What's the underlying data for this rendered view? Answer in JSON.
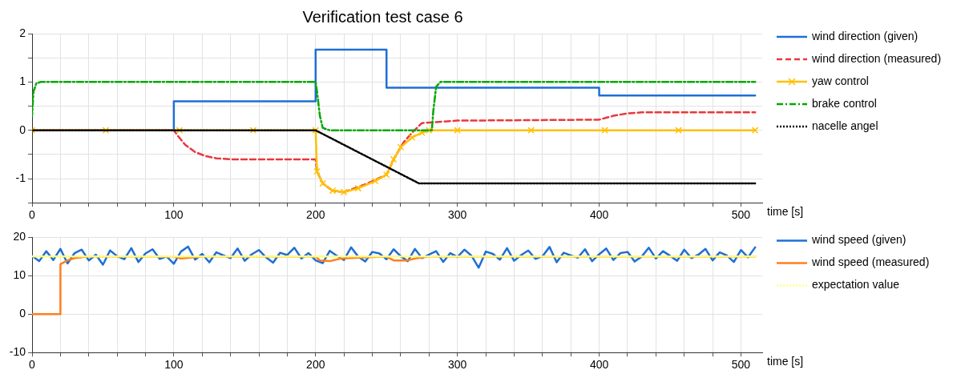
{
  "chart_data": [
    {
      "type": "line",
      "title": "Verification test case 6",
      "xlabel": "time [s]",
      "xlim": [
        0,
        515
      ],
      "ylim": [
        -1.5,
        2
      ],
      "xticks": [
        0,
        {
          "value": 20,
          "label": null
        },
        {
          "value": 40,
          "label": null
        },
        {
          "value": 60,
          "label": null
        },
        {
          "value": 80,
          "label": null
        },
        100,
        {
          "value": 120,
          "label": null
        },
        {
          "value": 140,
          "label": null
        },
        {
          "value": 160,
          "label": null
        },
        {
          "value": 180,
          "label": null
        },
        200,
        {
          "value": 220,
          "label": null
        },
        {
          "value": 240,
          "label": null
        },
        {
          "value": 260,
          "label": null
        },
        {
          "value": 280,
          "label": null
        },
        300,
        {
          "value": 320,
          "label": null
        },
        {
          "value": 340,
          "label": null
        },
        {
          "value": 360,
          "label": null
        },
        {
          "value": 380,
          "label": null
        },
        400,
        {
          "value": 420,
          "label": null
        },
        {
          "value": 440,
          "label": null
        },
        {
          "value": 460,
          "label": null
        },
        {
          "value": 480,
          "label": null
        },
        500
      ],
      "yticks": [
        {
          "value": -1.5,
          "label": null
        },
        -1,
        {
          "value": -0.5,
          "label": null
        },
        0,
        {
          "value": 0.5,
          "label": null
        },
        1,
        {
          "value": 1.5,
          "label": null
        },
        2
      ],
      "grid": true,
      "legend": "right",
      "marker": "none",
      "series": [
        {
          "name": "wind direction (given)",
          "color": "#1f6ed4",
          "line_style": "solid",
          "x": [
            0,
            100,
            100,
            200,
            200,
            250,
            250,
            400,
            400,
            510
          ],
          "values": [
            0,
            0,
            0.6,
            0.6,
            1.67,
            1.67,
            0.88,
            0.88,
            0.72,
            0.72
          ]
        },
        {
          "name": "wind direction (measured)",
          "color": "#e8383d",
          "line_style": "dashed",
          "x": [
            0,
            100,
            103,
            108,
            115,
            122,
            130,
            140,
            160,
            200,
            201,
            205,
            212,
            220,
            235,
            250,
            256,
            262,
            268,
            275,
            300,
            400,
            405,
            410,
            420,
            430,
            510
          ],
          "values": [
            0,
            0,
            -0.12,
            -0.3,
            -0.45,
            -0.53,
            -0.58,
            -0.6,
            -0.6,
            -0.6,
            -0.85,
            -1.1,
            -1.25,
            -1.28,
            -1.12,
            -0.92,
            -0.55,
            -0.25,
            -0.05,
            0.15,
            0.2,
            0.22,
            0.26,
            0.3,
            0.35,
            0.37,
            0.37
          ]
        },
        {
          "name": "yaw control",
          "color": "#ffc000",
          "line_style": "solid",
          "marker": "cross",
          "x": [
            0,
            52,
            104,
            156,
            200,
            201,
            205,
            212,
            220,
            230,
            242,
            250,
            255,
            260,
            268,
            275,
            280,
            300,
            352,
            404,
            456,
            510
          ],
          "values": [
            0,
            0,
            0,
            0,
            0,
            -0.85,
            -1.1,
            -1.25,
            -1.28,
            -1.2,
            -1.05,
            -0.92,
            -0.6,
            -0.35,
            -0.15,
            -0.05,
            0,
            0,
            0,
            0,
            0,
            0
          ]
        },
        {
          "name": "brake control",
          "color": "#00a800",
          "line_style": "dashdot",
          "x": [
            0,
            1,
            3,
            6,
            200,
            201,
            203,
            205,
            210,
            282,
            283,
            285,
            288,
            510
          ],
          "values": [
            0.3,
            0.8,
            0.97,
            1,
            1,
            0.8,
            0.3,
            0.05,
            0,
            0,
            0.4,
            0.9,
            1,
            1
          ]
        },
        {
          "name": "nacelle angel",
          "color": "#000000",
          "line_style": "dotted",
          "x": [
            0,
            200,
            273,
            510
          ],
          "values": [
            0,
            0,
            -1.1,
            -1.1
          ]
        }
      ]
    },
    {
      "type": "line",
      "xlabel": "time [s]",
      "xlim": [
        0,
        515
      ],
      "ylim": [
        -10,
        20
      ],
      "xticks": [
        0,
        {
          "value": 20,
          "label": null
        },
        {
          "value": 40,
          "label": null
        },
        {
          "value": 60,
          "label": null
        },
        {
          "value": 80,
          "label": null
        },
        100,
        {
          "value": 120,
          "label": null
        },
        {
          "value": 140,
          "label": null
        },
        {
          "value": 160,
          "label": null
        },
        {
          "value": 180,
          "label": null
        },
        200,
        {
          "value": 220,
          "label": null
        },
        {
          "value": 240,
          "label": null
        },
        {
          "value": 260,
          "label": null
        },
        {
          "value": 280,
          "label": null
        },
        300,
        {
          "value": 320,
          "label": null
        },
        {
          "value": 340,
          "label": null
        },
        {
          "value": 360,
          "label": null
        },
        {
          "value": 380,
          "label": null
        },
        400,
        {
          "value": 420,
          "label": null
        },
        {
          "value": 440,
          "label": null
        },
        {
          "value": 460,
          "label": null
        },
        {
          "value": 480,
          "label": null
        },
        500
      ],
      "yticks": [
        -10,
        0,
        10,
        20
      ],
      "grid": true,
      "legend": "right",
      "marker": "none",
      "series": [
        {
          "name": "wind speed (given)",
          "color": "#1f6ed4",
          "line_style": "solid",
          "x": [
            0,
            5,
            10,
            15,
            20,
            25,
            30,
            35,
            40,
            45,
            50,
            55,
            60,
            65,
            70,
            75,
            80,
            85,
            90,
            95,
            100,
            105,
            110,
            115,
            120,
            125,
            130,
            135,
            140,
            145,
            150,
            155,
            160,
            165,
            170,
            175,
            180,
            185,
            190,
            195,
            200,
            205,
            210,
            215,
            220,
            225,
            230,
            235,
            240,
            245,
            250,
            255,
            260,
            265,
            270,
            275,
            280,
            285,
            290,
            295,
            300,
            305,
            310,
            315,
            320,
            325,
            330,
            335,
            340,
            345,
            350,
            355,
            360,
            365,
            370,
            375,
            380,
            385,
            390,
            395,
            400,
            405,
            410,
            415,
            420,
            425,
            430,
            435,
            440,
            445,
            450,
            455,
            460,
            465,
            470,
            475,
            480,
            485,
            490,
            495,
            500,
            505,
            510
          ],
          "values": [
            15.2,
            13.8,
            16.4,
            14.1,
            17.0,
            13.2,
            15.9,
            16.8,
            14.0,
            15.5,
            12.9,
            16.6,
            15.1,
            14.3,
            17.2,
            13.6,
            15.8,
            16.9,
            14.4,
            15.0,
            13.1,
            16.3,
            17.6,
            14.2,
            15.7,
            13.5,
            16.1,
            15.3,
            14.6,
            17.1,
            13.9,
            15.6,
            16.7,
            14.8,
            13.4,
            16.0,
            15.4,
            17.3,
            14.5,
            15.9,
            14.0,
            13.3,
            16.5,
            15.2,
            14.1,
            17.4,
            15.0,
            13.7,
            16.2,
            15.8,
            14.3,
            16.9,
            15.1,
            13.8,
            17.0,
            14.6,
            15.5,
            16.4,
            13.6,
            15.9,
            14.9,
            16.8,
            15.2,
            12.1,
            16.3,
            15.7,
            14.2,
            17.2,
            13.9,
            15.4,
            16.6,
            14.4,
            15.1,
            17.5,
            13.5,
            16.0,
            15.3,
            14.7,
            16.9,
            13.8,
            15.6,
            17.1,
            14.1,
            15.9,
            16.2,
            13.7,
            15.0,
            17.3,
            14.5,
            16.4,
            15.2,
            13.9,
            16.8,
            14.6,
            15.5,
            17.0,
            14.0,
            16.1,
            15.3,
            13.6,
            16.7,
            14.8,
            17.4
          ]
        },
        {
          "name": "wind speed (measured)",
          "color": "#ff7f1e",
          "line_style": "solid",
          "x": [
            0,
            20,
            20,
            25,
            30,
            40,
            100,
            105,
            120,
            200,
            203,
            210,
            218,
            250,
            255,
            265,
            270,
            280,
            510
          ],
          "values": [
            0,
            0,
            13,
            14,
            14.6,
            15,
            15,
            14.5,
            15,
            15,
            14,
            13.8,
            14.5,
            15,
            14,
            14,
            14.5,
            15,
            15
          ]
        },
        {
          "name": "expectation value",
          "color": "#ffff80",
          "line_style": "dotted",
          "x": [
            0,
            510
          ],
          "values": [
            15,
            15
          ]
        }
      ]
    }
  ]
}
